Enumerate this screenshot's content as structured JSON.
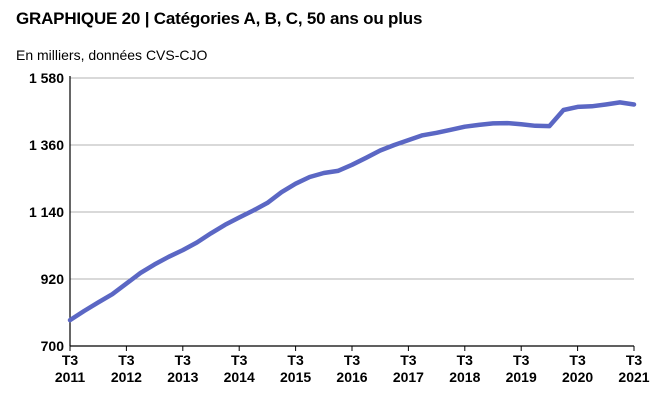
{
  "header": {
    "title": "GRAPHIQUE 20 | Catégories A, B, C, 50 ans ou plus",
    "subtitle": "En milliers, données CVS-CJO"
  },
  "chart_data": {
    "type": "line",
    "title": "GRAPHIQUE 20 | Catégories A, B, C, 50 ans ou plus",
    "subtitle": "En milliers, données CVS-CJO",
    "xlabel": "",
    "ylabel": "",
    "ylim": [
      700,
      1580
    ],
    "yticks": [
      700,
      920,
      1140,
      1360,
      1580
    ],
    "ytick_labels": [
      "700",
      "920",
      "1 140",
      "1 360",
      "1 580"
    ],
    "xtick_labels": [
      [
        "T3",
        "2011"
      ],
      [
        "T3",
        "2012"
      ],
      [
        "T3",
        "2013"
      ],
      [
        "T3",
        "2014"
      ],
      [
        "T3",
        "2015"
      ],
      [
        "T3",
        "2016"
      ],
      [
        "T3",
        "2017"
      ],
      [
        "T3",
        "2018"
      ],
      [
        "T3",
        "2019"
      ],
      [
        "T3",
        "2020"
      ],
      [
        "T3",
        "2021"
      ]
    ],
    "grid": true,
    "legend": "none",
    "line_color": "#5b67c4",
    "series": [
      {
        "values": [
          785,
          815,
          843,
          870,
          905,
          940,
          968,
          993,
          1015,
          1040,
          1070,
          1098,
          1122,
          1145,
          1170,
          1205,
          1233,
          1255,
          1268,
          1275,
          1295,
          1318,
          1342,
          1360,
          1376,
          1392,
          1400,
          1410,
          1420,
          1426,
          1431,
          1432,
          1428,
          1423,
          1422,
          1475,
          1485,
          1487,
          1493,
          1500,
          1493
        ]
      }
    ]
  }
}
